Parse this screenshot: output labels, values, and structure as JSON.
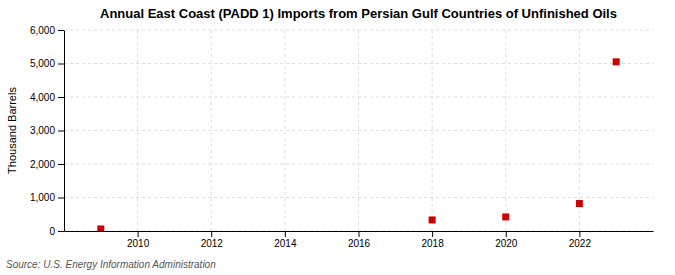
{
  "chart_data": {
    "type": "scatter",
    "title": "Annual East Coast (PADD 1) Imports from Persian Gulf Countries of Unfinished Oils",
    "ylabel": "Thousand Barrels",
    "annotations": [
      "Source: U.S. Energy Information Administration"
    ],
    "x": [
      2009,
      2018,
      2020,
      2022,
      2023
    ],
    "values": [
      60,
      330,
      420,
      820,
      5050
    ],
    "color": "#cc0000",
    "marker": "square",
    "xlim": [
      2008.0,
      2024.0
    ],
    "ylim": [
      0,
      6000
    ],
    "xticks": [
      2010,
      2012,
      2014,
      2016,
      2018,
      2020,
      2022
    ],
    "yticks": [
      0,
      {
        "value": 1000,
        "label": "1,000"
      },
      {
        "value": 2000,
        "label": "2,000"
      },
      {
        "value": 3000,
        "label": "3,000"
      },
      {
        "value": 4000,
        "label": "4,000"
      },
      {
        "value": 5000,
        "label": "5,000"
      },
      {
        "value": 6000,
        "label": "6,000"
      }
    ],
    "grid": true
  }
}
